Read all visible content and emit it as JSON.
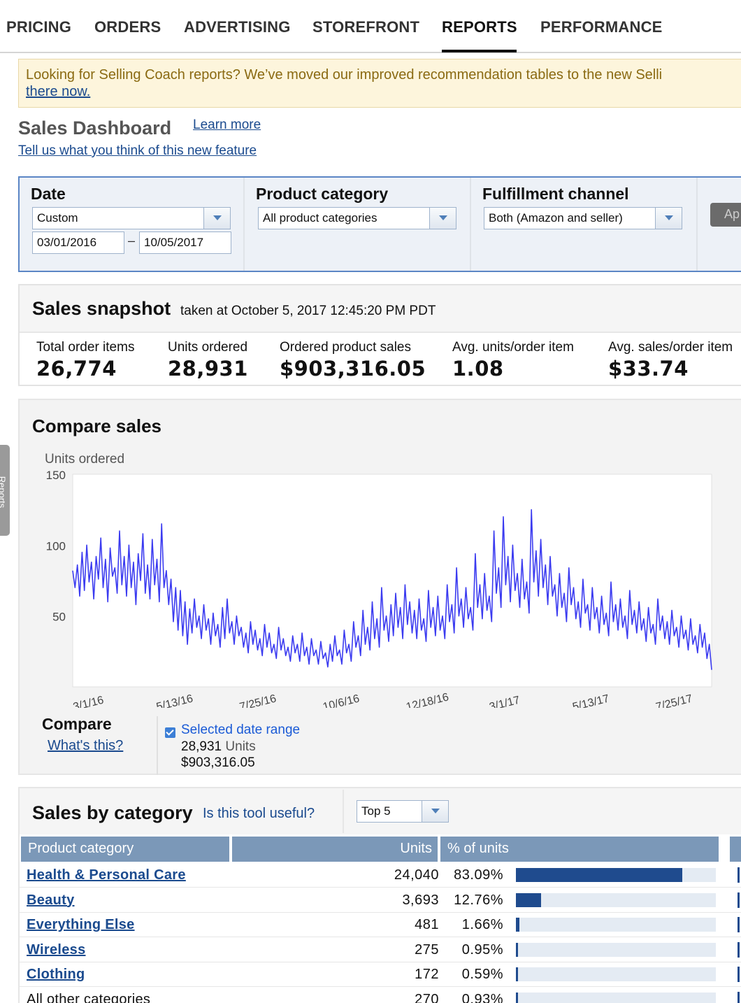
{
  "nav": {
    "tabs": [
      {
        "label": "PRICING"
      },
      {
        "label": "ORDERS"
      },
      {
        "label": "ADVERTISING"
      },
      {
        "label": "STOREFRONT"
      },
      {
        "label": "REPORTS",
        "active": true
      },
      {
        "label": "PERFORMANCE"
      }
    ]
  },
  "banner": {
    "text": "Looking for Selling Coach reports? We’ve moved our improved recommendation tables to the new Selli",
    "link": "there now."
  },
  "header": {
    "title": "Sales Dashboard",
    "learn_more": "Learn more",
    "feedback": "Tell us what you think of this new feature"
  },
  "filters": {
    "date_label": "Date",
    "date_preset": "Custom",
    "date_from": "03/01/2016",
    "date_sep": "–",
    "date_to": "10/05/2017",
    "category_label": "Product category",
    "category_value": "All product categories",
    "channel_label": "Fulfillment channel",
    "channel_value": "Both (Amazon and seller)",
    "apply_label": "Ap"
  },
  "snapshot": {
    "title": "Sales snapshot",
    "taken": "taken at October 5, 2017 12:45:20 PM PDT",
    "metrics": [
      {
        "label": "Total order items",
        "value": "26,774"
      },
      {
        "label": "Units ordered",
        "value": "28,931"
      },
      {
        "label": "Ordered product sales",
        "value": "$903,316.05"
      },
      {
        "label": "Avg. units/order item",
        "value": "1.08"
      },
      {
        "label": "Avg. sales/order item",
        "value": "$33.74"
      }
    ]
  },
  "compare": {
    "title": "Compare sales",
    "compare_label": "Compare",
    "whats_this": "What's this?",
    "selected_range": "Selected date range",
    "units_value": "28,931",
    "units_word": "Units",
    "sales_value": "$903,316.05",
    "side_tab": "Reports"
  },
  "chart_data": {
    "type": "line",
    "title": "",
    "ylabel": "Units ordered",
    "ylim": [
      0,
      150
    ],
    "yticks": [
      50,
      100,
      150
    ],
    "grid": false,
    "x_tick_labels": [
      "3/1/16",
      "5/13/16",
      "7/25/16",
      "10/6/16",
      "12/18/16",
      "3/1/17",
      "5/13/17",
      "7/25/17"
    ],
    "x_start": "2016-03-01",
    "x_end": "2017-10-05",
    "series": [
      {
        "color": "#3b3bf0",
        "values": [
          82,
          70,
          86,
          64,
          95,
          68,
          100,
          74,
          88,
          62,
          92,
          76,
          105,
          70,
          90,
          60,
          98,
          78,
          84,
          66,
          110,
          72,
          92,
          64,
          100,
          70,
          88,
          58,
          94,
          75,
          108,
          66,
          86,
          62,
          104,
          72,
          90,
          60,
          115,
          70,
          82,
          58,
          76,
          46,
          70,
          40,
          68,
          36,
          60,
          30,
          55,
          38,
          62,
          42,
          50,
          34,
          58,
          40,
          48,
          30,
          52,
          36,
          44,
          28,
          56,
          34,
          62,
          38,
          46,
          30,
          50,
          36,
          42,
          28,
          38,
          24,
          46,
          30,
          40,
          26,
          34,
          22,
          44,
          28,
          38,
          24,
          30,
          20,
          42,
          26,
          34,
          22,
          28,
          18,
          36,
          24,
          30,
          18,
          38,
          22,
          28,
          16,
          34,
          22,
          26,
          16,
          32,
          20,
          24,
          14,
          30,
          18,
          36,
          22,
          26,
          16,
          40,
          24,
          30,
          18,
          46,
          28,
          36,
          22,
          54,
          30,
          42,
          26,
          60,
          34,
          48,
          28,
          70,
          40,
          50,
          32,
          58,
          36,
          66,
          42,
          56,
          34,
          72,
          44,
          60,
          38,
          54,
          34,
          62,
          40,
          48,
          32,
          68,
          42,
          56,
          36,
          64,
          40,
          50,
          34,
          72,
          46,
          58,
          38,
          84,
          50,
          62,
          42,
          70,
          48,
          56,
          40,
          94,
          56,
          72,
          48,
          80,
          54,
          64,
          46,
          110,
          66,
          84,
          56,
          120,
          72,
          92,
          60,
          100,
          68,
          80,
          56,
          90,
          62,
          74,
          52,
          125,
          74,
          96,
          64,
          104,
          70,
          86,
          58,
          92,
          64,
          72,
          50,
          80,
          56,
          66,
          46,
          84,
          58,
          70,
          48,
          60,
          42,
          76,
          52,
          58,
          40,
          70,
          48,
          56,
          38,
          64,
          44,
          52,
          36,
          74,
          46,
          58,
          40,
          62,
          42,
          50,
          34,
          68,
          44,
          54,
          38,
          60,
          40,
          48,
          32,
          56,
          38,
          44,
          30,
          62,
          40,
          50,
          34,
          46,
          30,
          54,
          36,
          42,
          28,
          50,
          34,
          40,
          26,
          48,
          30,
          36,
          24,
          44,
          28,
          38,
          20,
          30,
          12
        ]
      }
    ]
  },
  "categories": {
    "title": "Sales by category",
    "useful": "Is this tool useful?",
    "top_select": "Top 5",
    "columns": [
      "Product category",
      "Units",
      "% of units"
    ],
    "rows": [
      {
        "name": "Health & Personal Care",
        "units": "24,040",
        "pct": "83.09%",
        "share": 83.09
      },
      {
        "name": "Beauty",
        "units": "3,693",
        "pct": "12.76%",
        "share": 12.76
      },
      {
        "name": "Everything Else",
        "units": "481",
        "pct": "1.66%",
        "share": 1.66
      },
      {
        "name": "Wireless",
        "units": "275",
        "pct": "0.95%",
        "share": 0.95
      },
      {
        "name": "Clothing",
        "units": "172",
        "pct": "0.59%",
        "share": 0.59
      },
      {
        "name": "All other categories",
        "units": "270",
        "pct": "0.93%",
        "share": 0.93
      }
    ]
  }
}
